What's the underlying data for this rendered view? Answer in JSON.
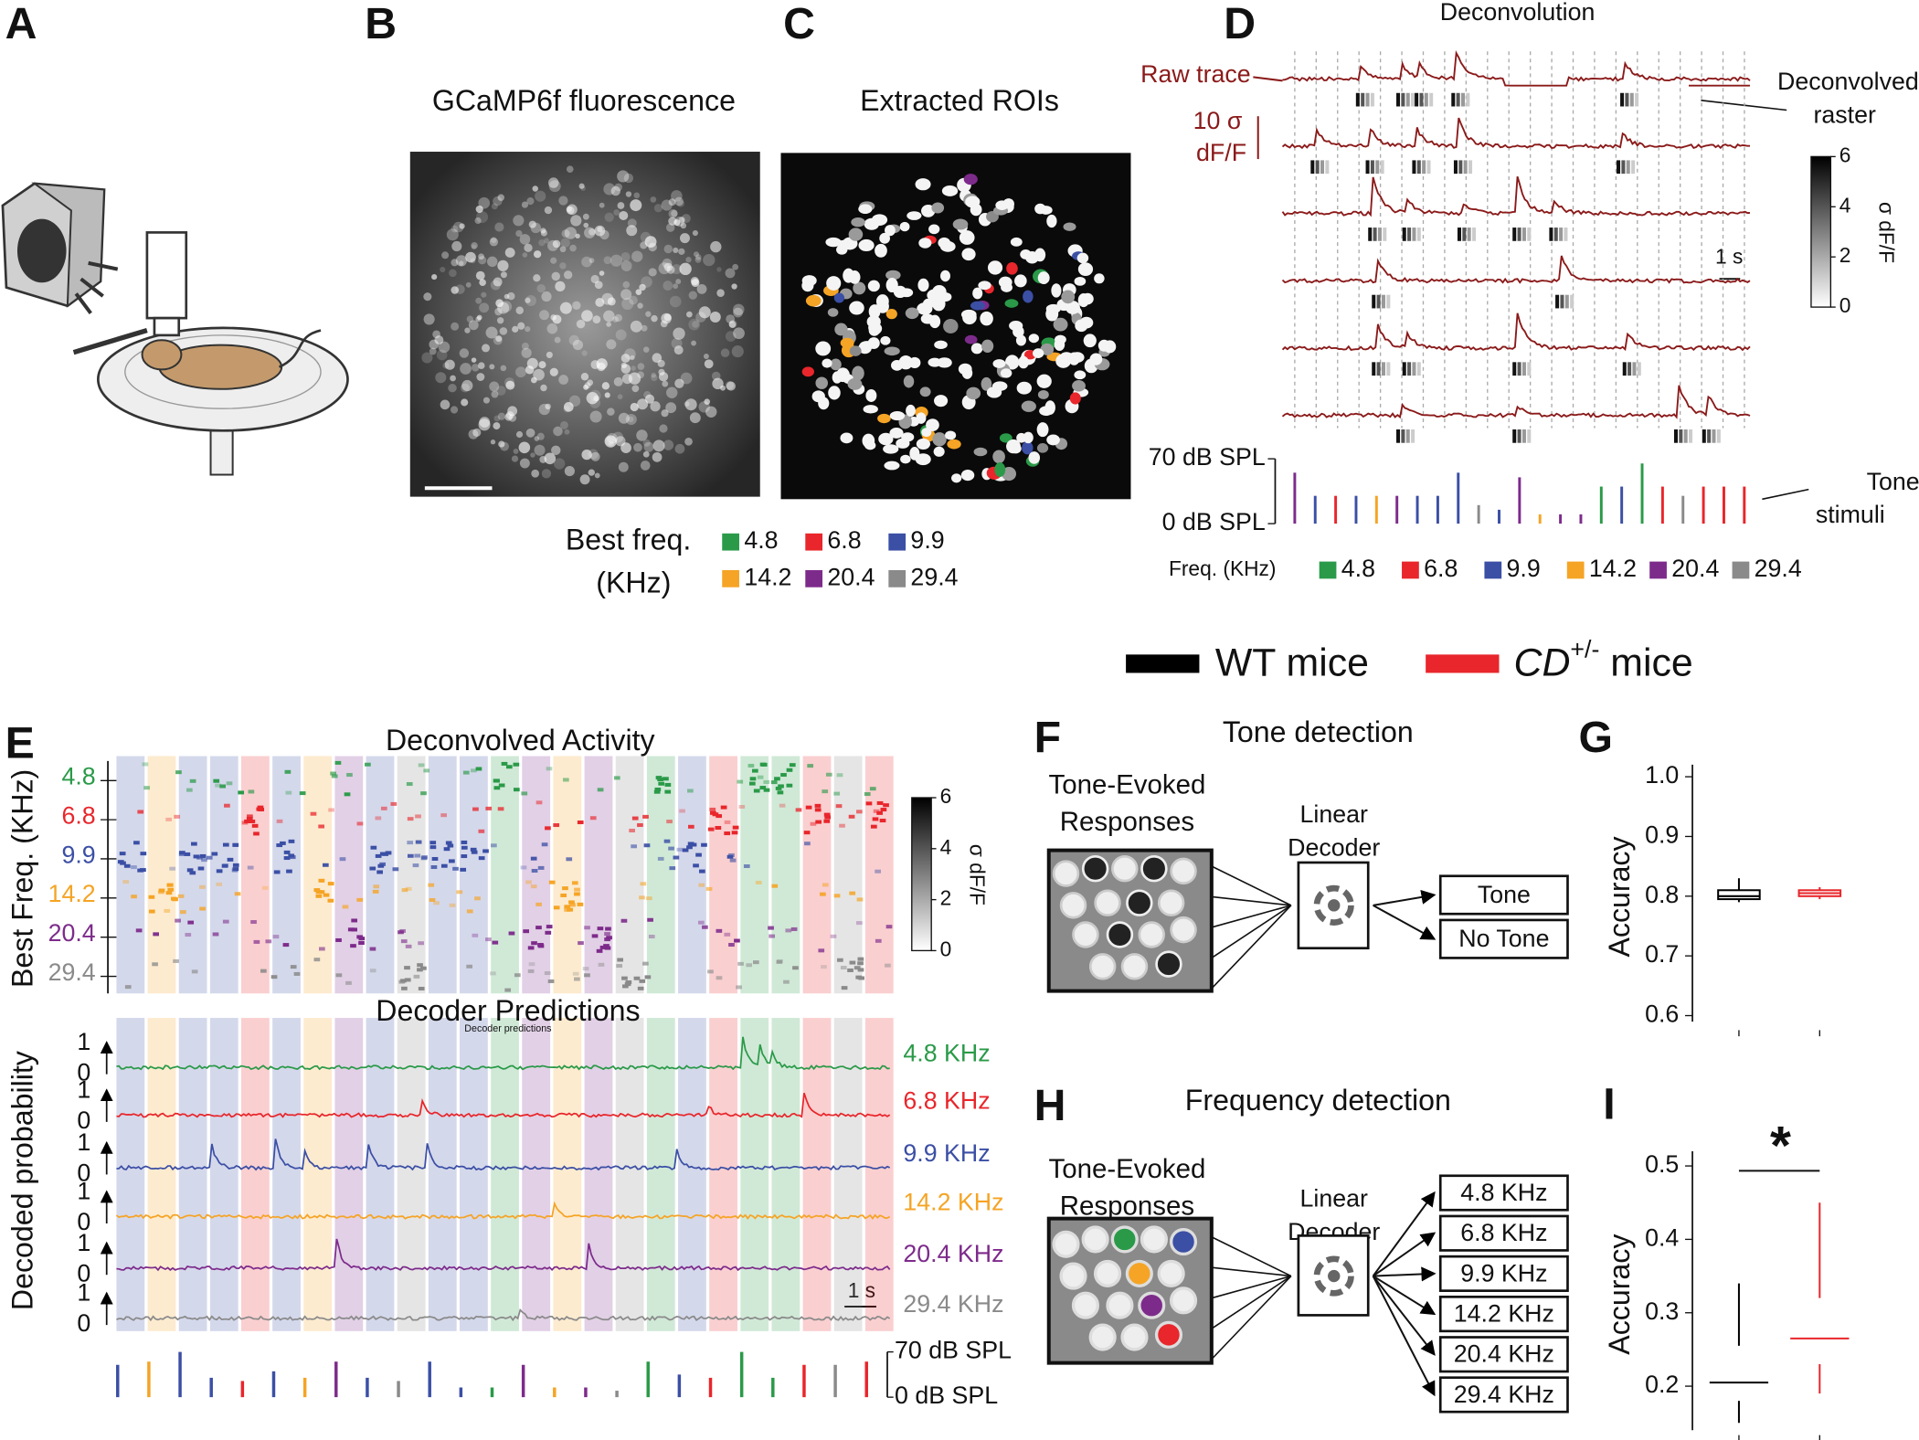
{
  "figure": {
    "frequencies": [
      {
        "label": "4.8",
        "color": "#2a9a48"
      },
      {
        "label": "6.8",
        "color": "#e8262b"
      },
      {
        "label": "9.9",
        "color": "#3b4fa5"
      },
      {
        "label": "14.2",
        "color": "#f5a425"
      },
      {
        "label": "20.4",
        "color": "#7d2b8b"
      },
      {
        "label": "29.4",
        "color": "#8a8a8a"
      }
    ],
    "panel_a": {
      "label": "A"
    },
    "panel_b": {
      "label": "B",
      "title": "GCaMP6f fluorescence"
    },
    "panel_c": {
      "label": "C",
      "title": "Extracted ROIs",
      "legend_title": [
        "Best freq.",
        "(KHz)"
      ]
    },
    "panel_d": {
      "label": "D",
      "title": "Deconvolution",
      "raw_trace": "Raw trace",
      "raster": [
        "Deconvolved",
        "raster"
      ],
      "scale_y": [
        "10 σ",
        "dF/F"
      ],
      "scale_x": "1 s",
      "colorbar": {
        "label": "σ dF/F",
        "ticks": [
          0,
          2,
          4,
          6
        ]
      },
      "stimulus_axis": {
        "ylim": [
          0,
          70
        ],
        "ticks": [
          {
            "value": 70,
            "label": "70 dB SPL"
          },
          {
            "value": 0,
            "label": "0 dB SPL"
          }
        ]
      },
      "stimuli_label": [
        "Tone",
        "stimuli"
      ],
      "freq_legend_title": "Freq. (KHz)",
      "stimuli": {
        "freq_index": [
          4,
          2,
          1,
          2,
          3,
          4,
          2,
          2,
          2,
          5,
          2,
          4,
          3,
          4,
          4,
          0,
          2,
          0,
          1,
          5,
          1,
          1,
          1
        ],
        "level": [
          55,
          30,
          30,
          30,
          30,
          30,
          30,
          30,
          55,
          20,
          15,
          50,
          10,
          10,
          10,
          40,
          40,
          65,
          40,
          30,
          40,
          40,
          40
        ]
      }
    },
    "legend": {
      "wt": {
        "text": "WT mice",
        "color": "#000000"
      },
      "cd": {
        "italic": "CD",
        "sup": "+/-",
        "rest": " mice",
        "color": "#e8262b"
      }
    },
    "panel_e": {
      "label": "E",
      "title": "Deconvolved Activity",
      "ylabel": "Best Freq. (KHz)",
      "colorbar": {
        "label": "σ dF/F",
        "ticks": [
          0,
          2,
          4,
          6
        ]
      },
      "decoder_title": "Decoder Predictions",
      "decoder_subtitle": "Decoder predictions",
      "decoder_ylabel": "Decoded probability",
      "prob_ticks": [
        1,
        0
      ],
      "decoder_labels": [
        "4.8 KHz",
        "6.8 KHz",
        "9.9 KHz",
        "14.2 KHz",
        "20.4 KHz",
        "29.4 KHz"
      ],
      "scale_x": "1 s",
      "stimulus_axis": {
        "ylim": [
          0,
          70
        ],
        "ticks": [
          {
            "value": 70,
            "label": "70 dB SPL"
          },
          {
            "value": 0,
            "label": "0 dB SPL"
          }
        ]
      },
      "stimuli": {
        "freq_index": [
          2,
          3,
          2,
          2,
          1,
          2,
          3,
          4,
          2,
          5,
          2,
          2,
          0,
          4,
          3,
          4,
          5,
          0,
          2,
          1,
          0,
          0,
          1,
          5,
          1
        ],
        "level": [
          50,
          55,
          70,
          30,
          25,
          40,
          30,
          55,
          30,
          25,
          55,
          15,
          15,
          50,
          15,
          15,
          10,
          55,
          35,
          30,
          70,
          30,
          50,
          50,
          55
        ]
      }
    },
    "panel_f": {
      "label": "F",
      "title": "Tone detection",
      "input": [
        "Tone-Evoked",
        "Responses"
      ],
      "decoder": [
        "Linear",
        "Decoder"
      ],
      "outputs": [
        "Tone",
        "No Tone"
      ]
    },
    "panel_g": {
      "label": "G",
      "chart": {
        "type": "box",
        "ylabel": "Accuracy",
        "ylim": [
          0.59,
          1.01
        ],
        "yticks": [
          0.6,
          0.7,
          0.8,
          0.9,
          {
            "value": 1,
            "label": "1.0"
          }
        ],
        "boxes": true,
        "series": [
          {
            "color": "#000000",
            "min": 0.79,
            "q1": 0.795,
            "median": 0.8,
            "q3": 0.81,
            "max": 0.83
          },
          {
            "color": "#e8262b",
            "min": 0.795,
            "q1": 0.8,
            "median": 0.805,
            "q3": 0.81,
            "max": 0.815
          }
        ]
      }
    },
    "panel_h": {
      "label": "H",
      "title": "Frequency detection",
      "input": [
        "Tone-Evoked",
        "Responses"
      ],
      "decoder": [
        "Linear",
        "Decoder"
      ],
      "outputs": [
        "4.8 KHz",
        "6.8 KHz",
        "9.9 KHz",
        "14.2 KHz",
        "20.4 KHz",
        "29.4 KHz"
      ]
    },
    "panel_i": {
      "label": "I",
      "chart": {
        "type": "box",
        "ylabel": "Accuracy",
        "significance": "*",
        "ylim": [
          0.14,
          0.52
        ],
        "yticks": [
          0.2,
          0.3,
          0.4,
          0.5
        ],
        "boxes": false,
        "series": [
          {
            "color": "#000000",
            "min": 0.15,
            "q1": 0.18,
            "median": 0.205,
            "q3": 0.255,
            "max": 0.34
          },
          {
            "color": "#e8262b",
            "min": 0.19,
            "q1": 0.23,
            "median": 0.265,
            "q3": 0.32,
            "max": 0.45
          }
        ]
      }
    }
  }
}
